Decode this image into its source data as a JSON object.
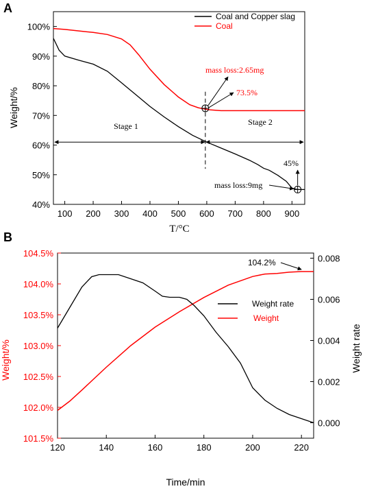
{
  "colors": {
    "coal": "#ff0000",
    "mix": "#000000",
    "weight": "#ff0000",
    "rate": "#000000"
  },
  "chart_data": [
    {
      "type": "line",
      "panel_label": "A",
      "xlabel": "T/°C",
      "ylabel": "Weight/%",
      "xlim": [
        60,
        945
      ],
      "ylim": [
        40,
        105
      ],
      "x_ticks": [
        100,
        200,
        300,
        400,
        500,
        600,
        700,
        800,
        900
      ],
      "y_ticks": [
        {
          "v": 40,
          "label": "40%"
        },
        {
          "v": 50,
          "label": "50%"
        },
        {
          "v": 60,
          "label": "60%"
        },
        {
          "v": 70,
          "label": "70%"
        },
        {
          "v": 80,
          "label": "80%"
        },
        {
          "v": 90,
          "label": "90%"
        },
        {
          "v": 100,
          "label": "100%"
        }
      ],
      "legend": {
        "placement": "top-right",
        "items": [
          {
            "name": "Coal and Copper slag",
            "color": "#000000"
          },
          {
            "name": "Coal",
            "color": "#ff0000"
          }
        ]
      },
      "series": [
        {
          "name": "Coal",
          "color": "#ff0000",
          "x": [
            60,
            100,
            150,
            200,
            250,
            300,
            330,
            360,
            400,
            450,
            500,
            540,
            570,
            590,
            610,
            650,
            700,
            800,
            900,
            945
          ],
          "y": [
            99.3,
            99.0,
            98.5,
            98.0,
            97.3,
            95.8,
            93.8,
            90.5,
            85.6,
            80.4,
            76.2,
            73.6,
            72.6,
            72.2,
            71.9,
            71.6,
            71.6,
            71.6,
            71.6,
            71.6
          ]
        },
        {
          "name": "Coal and Copper slag",
          "color": "#000000",
          "x": [
            60,
            80,
            100,
            150,
            200,
            250,
            300,
            350,
            400,
            450,
            500,
            550,
            600,
            650,
            700,
            750,
            780,
            800,
            820,
            850,
            880,
            900,
            920,
            945
          ],
          "y": [
            96.0,
            92.0,
            90.0,
            88.6,
            87.3,
            84.9,
            81.0,
            77.0,
            73.0,
            69.5,
            66.2,
            63.3,
            61.0,
            59.0,
            57.0,
            54.9,
            53.4,
            52.2,
            51.5,
            49.8,
            47.8,
            45.5,
            45.0,
            45.0
          ]
        }
      ],
      "stage_divider_x": 595,
      "stage_arrow_y": 61,
      "stages": [
        "Stage 1",
        "Stage 2"
      ],
      "annotations": [
        {
          "text": "mass loss:2.65mg",
          "color": "#ff0000"
        },
        {
          "text": "73.5%",
          "color": "#ff0000"
        },
        {
          "text": "45%",
          "color": "#000000"
        },
        {
          "text": "mass loss:9mg",
          "color": "#000000"
        }
      ],
      "markers": [
        {
          "x": 595,
          "y": 72.4
        },
        {
          "x": 920,
          "y": 45.0
        }
      ]
    },
    {
      "type": "line",
      "panel_label": "B",
      "xlabel": "Time/min",
      "ylabel_left": "Weight/%",
      "ylabel_right": "Weight rate",
      "xlim": [
        120,
        225
      ],
      "ylim_left": [
        101.5,
        104.5
      ],
      "ylim_right": [
        -0.00075,
        0.00825
      ],
      "x_ticks": [
        120,
        140,
        160,
        180,
        200,
        220
      ],
      "y_ticks_left": [
        {
          "v": 101.5,
          "label": "101.5%"
        },
        {
          "v": 102.0,
          "label": "102.0%"
        },
        {
          "v": 102.5,
          "label": "102.5%"
        },
        {
          "v": 103.0,
          "label": "103.0%"
        },
        {
          "v": 103.5,
          "label": "103.5%"
        },
        {
          "v": 104.0,
          "label": "104.0%"
        },
        {
          "v": 104.5,
          "label": "104.5%"
        }
      ],
      "y_ticks_right": [
        {
          "v": 0.0,
          "label": "0.000"
        },
        {
          "v": 0.002,
          "label": "0.002"
        },
        {
          "v": 0.004,
          "label": "0.004"
        },
        {
          "v": 0.006,
          "label": "0.006"
        },
        {
          "v": 0.008,
          "label": "0.008"
        }
      ],
      "legend": {
        "placement": "right",
        "items": [
          {
            "name": "Weight rate",
            "color": "#000000"
          },
          {
            "name": "Weight",
            "color": "#ff0000"
          }
        ]
      },
      "series": [
        {
          "name": "Weight",
          "axis": "left",
          "color": "#ff0000",
          "x": [
            120,
            125,
            130,
            140,
            150,
            160,
            170,
            180,
            190,
            200,
            205,
            210,
            215,
            220,
            225
          ],
          "y": [
            101.95,
            102.1,
            102.28,
            102.65,
            103.0,
            103.3,
            103.55,
            103.78,
            103.98,
            104.12,
            104.16,
            104.17,
            104.19,
            104.2,
            104.2
          ]
        },
        {
          "name": "Weight rate",
          "axis": "right",
          "color": "#000000",
          "x": [
            120,
            125,
            130,
            134,
            137,
            140,
            145,
            150,
            155,
            160,
            163,
            166,
            170,
            173,
            176,
            180,
            185,
            190,
            195,
            200,
            205,
            210,
            215,
            220,
            225
          ],
          "y": [
            0.0046,
            0.0056,
            0.0066,
            0.0071,
            0.0072,
            0.0072,
            0.0072,
            0.007,
            0.0068,
            0.0064,
            0.00615,
            0.0061,
            0.0061,
            0.006,
            0.0057,
            0.0052,
            0.0044,
            0.0037,
            0.0029,
            0.0017,
            0.0011,
            0.0007,
            0.0004,
            0.0002,
            0.0
          ]
        }
      ],
      "annotations": [
        {
          "text": "104.2%",
          "color": "#000000"
        }
      ]
    }
  ]
}
